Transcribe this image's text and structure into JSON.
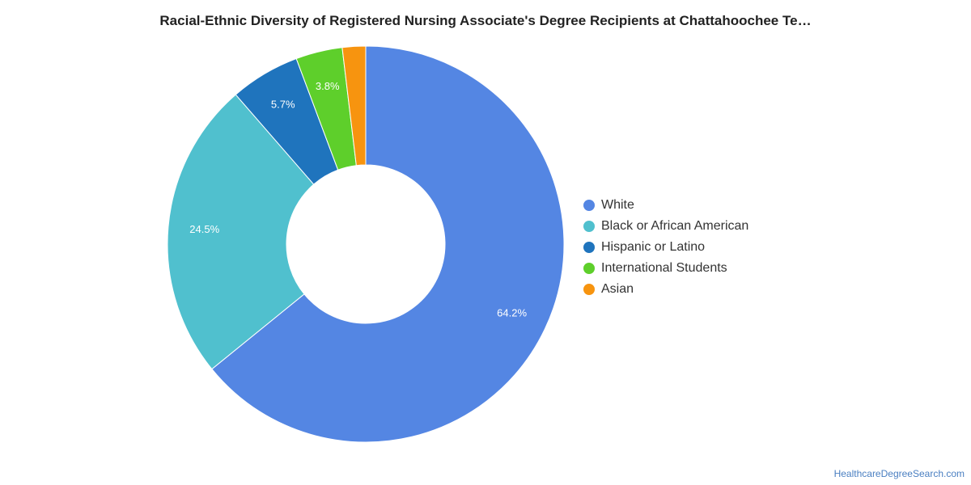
{
  "chart_data": {
    "type": "pie",
    "title": "Racial-Ethnic Diversity of Registered Nursing Associate's Degree Recipients at Chattahoochee Te…",
    "legend_position": "right",
    "slices": [
      {
        "name": "White",
        "value": 64.2,
        "label": "64.2%",
        "color": "#5486e3"
      },
      {
        "name": "Black or African American",
        "value": 24.5,
        "label": "24.5%",
        "color": "#50c0ce"
      },
      {
        "name": "Hispanic or Latino",
        "value": 5.7,
        "label": "5.7%",
        "color": "#1f74bd"
      },
      {
        "name": "International Students",
        "value": 3.8,
        "label": "3.8%",
        "color": "#5ecf2b"
      },
      {
        "name": "Asian",
        "value": 1.9,
        "label": "",
        "color": "#f7940f"
      }
    ]
  },
  "footer": {
    "credit": "HealthcareDegreeSearch.com"
  }
}
